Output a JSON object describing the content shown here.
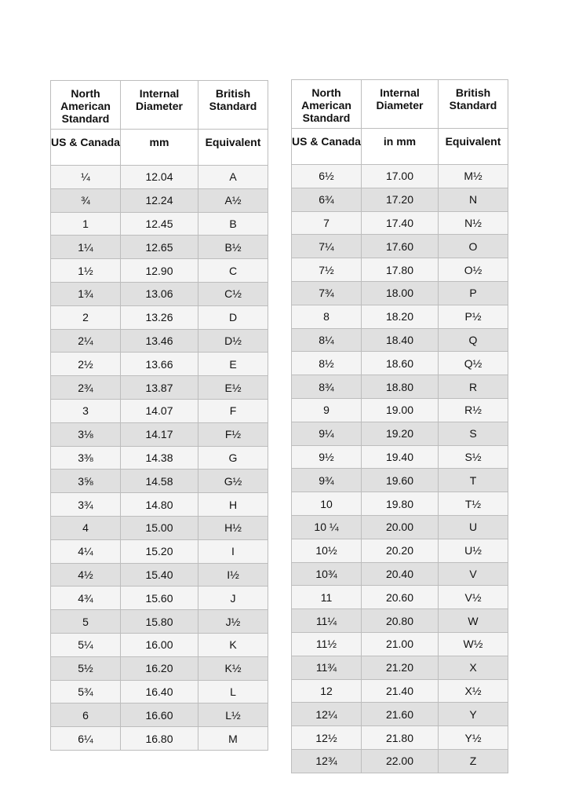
{
  "tables": [
    {
      "header": [
        [
          "North American Standard",
          "Internal Diameter",
          "British Standard"
        ],
        [
          "US & Canada",
          "mm",
          "Equivalent"
        ]
      ],
      "rows": [
        [
          "¼",
          "12.04",
          "A"
        ],
        [
          "¾",
          "12.24",
          "A½"
        ],
        [
          "1",
          "12.45",
          "B"
        ],
        [
          "1¼",
          "12.65",
          "B½"
        ],
        [
          "1½",
          "12.90",
          "C"
        ],
        [
          "1¾",
          "13.06",
          "C½"
        ],
        [
          "2",
          "13.26",
          "D"
        ],
        [
          "2¼",
          "13.46",
          "D½"
        ],
        [
          "2½",
          "13.66",
          "E"
        ],
        [
          "2¾",
          "13.87",
          "E½"
        ],
        [
          "3",
          "14.07",
          "F"
        ],
        [
          "3⅛",
          "14.17",
          "F½"
        ],
        [
          "3⅜",
          "14.38",
          "G"
        ],
        [
          "3⅝",
          "14.58",
          "G½"
        ],
        [
          "3¾",
          "14.80",
          "H"
        ],
        [
          "4",
          "15.00",
          "H½"
        ],
        [
          "4¼",
          "15.20",
          "I"
        ],
        [
          "4½",
          "15.40",
          "I½"
        ],
        [
          "4¾",
          "15.60",
          "J"
        ],
        [
          "5",
          "15.80",
          "J½"
        ],
        [
          "5¼",
          "16.00",
          "K"
        ],
        [
          "5½",
          "16.20",
          "K½"
        ],
        [
          "5¾",
          "16.40",
          "L"
        ],
        [
          "6",
          "16.60",
          "L½"
        ],
        [
          "6¼",
          "16.80",
          "M"
        ]
      ]
    },
    {
      "header": [
        [
          "North American Standard",
          "Internal Diameter",
          "British Standard"
        ],
        [
          "US & Canada",
          "in mm",
          "Equivalent"
        ]
      ],
      "rows": [
        [
          "6½",
          "17.00",
          "M½"
        ],
        [
          "6¾",
          "17.20",
          "N"
        ],
        [
          "7",
          "17.40",
          "N½"
        ],
        [
          "7¼",
          "17.60",
          "O"
        ],
        [
          "7½",
          "17.80",
          "O½"
        ],
        [
          "7¾",
          "18.00",
          "P"
        ],
        [
          "8",
          "18.20",
          "P½"
        ],
        [
          "8¼",
          "18.40",
          "Q"
        ],
        [
          "8½",
          "18.60",
          "Q½"
        ],
        [
          "8¾",
          "18.80",
          "R"
        ],
        [
          "9",
          "19.00",
          "R½"
        ],
        [
          "9¼",
          "19.20",
          "S"
        ],
        [
          "9½",
          "19.40",
          "S½"
        ],
        [
          "9¾",
          "19.60",
          "T"
        ],
        [
          "10",
          "19.80",
          "T½"
        ],
        [
          "10 ¼",
          "20.00",
          "U"
        ],
        [
          "10½",
          "20.20",
          "U½"
        ],
        [
          "10¾",
          "20.40",
          "V"
        ],
        [
          "11",
          "20.60",
          "V½"
        ],
        [
          "11¼",
          "20.80",
          "W"
        ],
        [
          "11½",
          "21.00",
          "W½"
        ],
        [
          "11¾",
          "21.20",
          "X"
        ],
        [
          "12",
          "21.40",
          "X½"
        ],
        [
          "12¼",
          "21.60",
          "Y"
        ],
        [
          "12½",
          "21.80",
          "Y½"
        ],
        [
          "12¾",
          "22.00",
          "Z"
        ]
      ]
    }
  ]
}
